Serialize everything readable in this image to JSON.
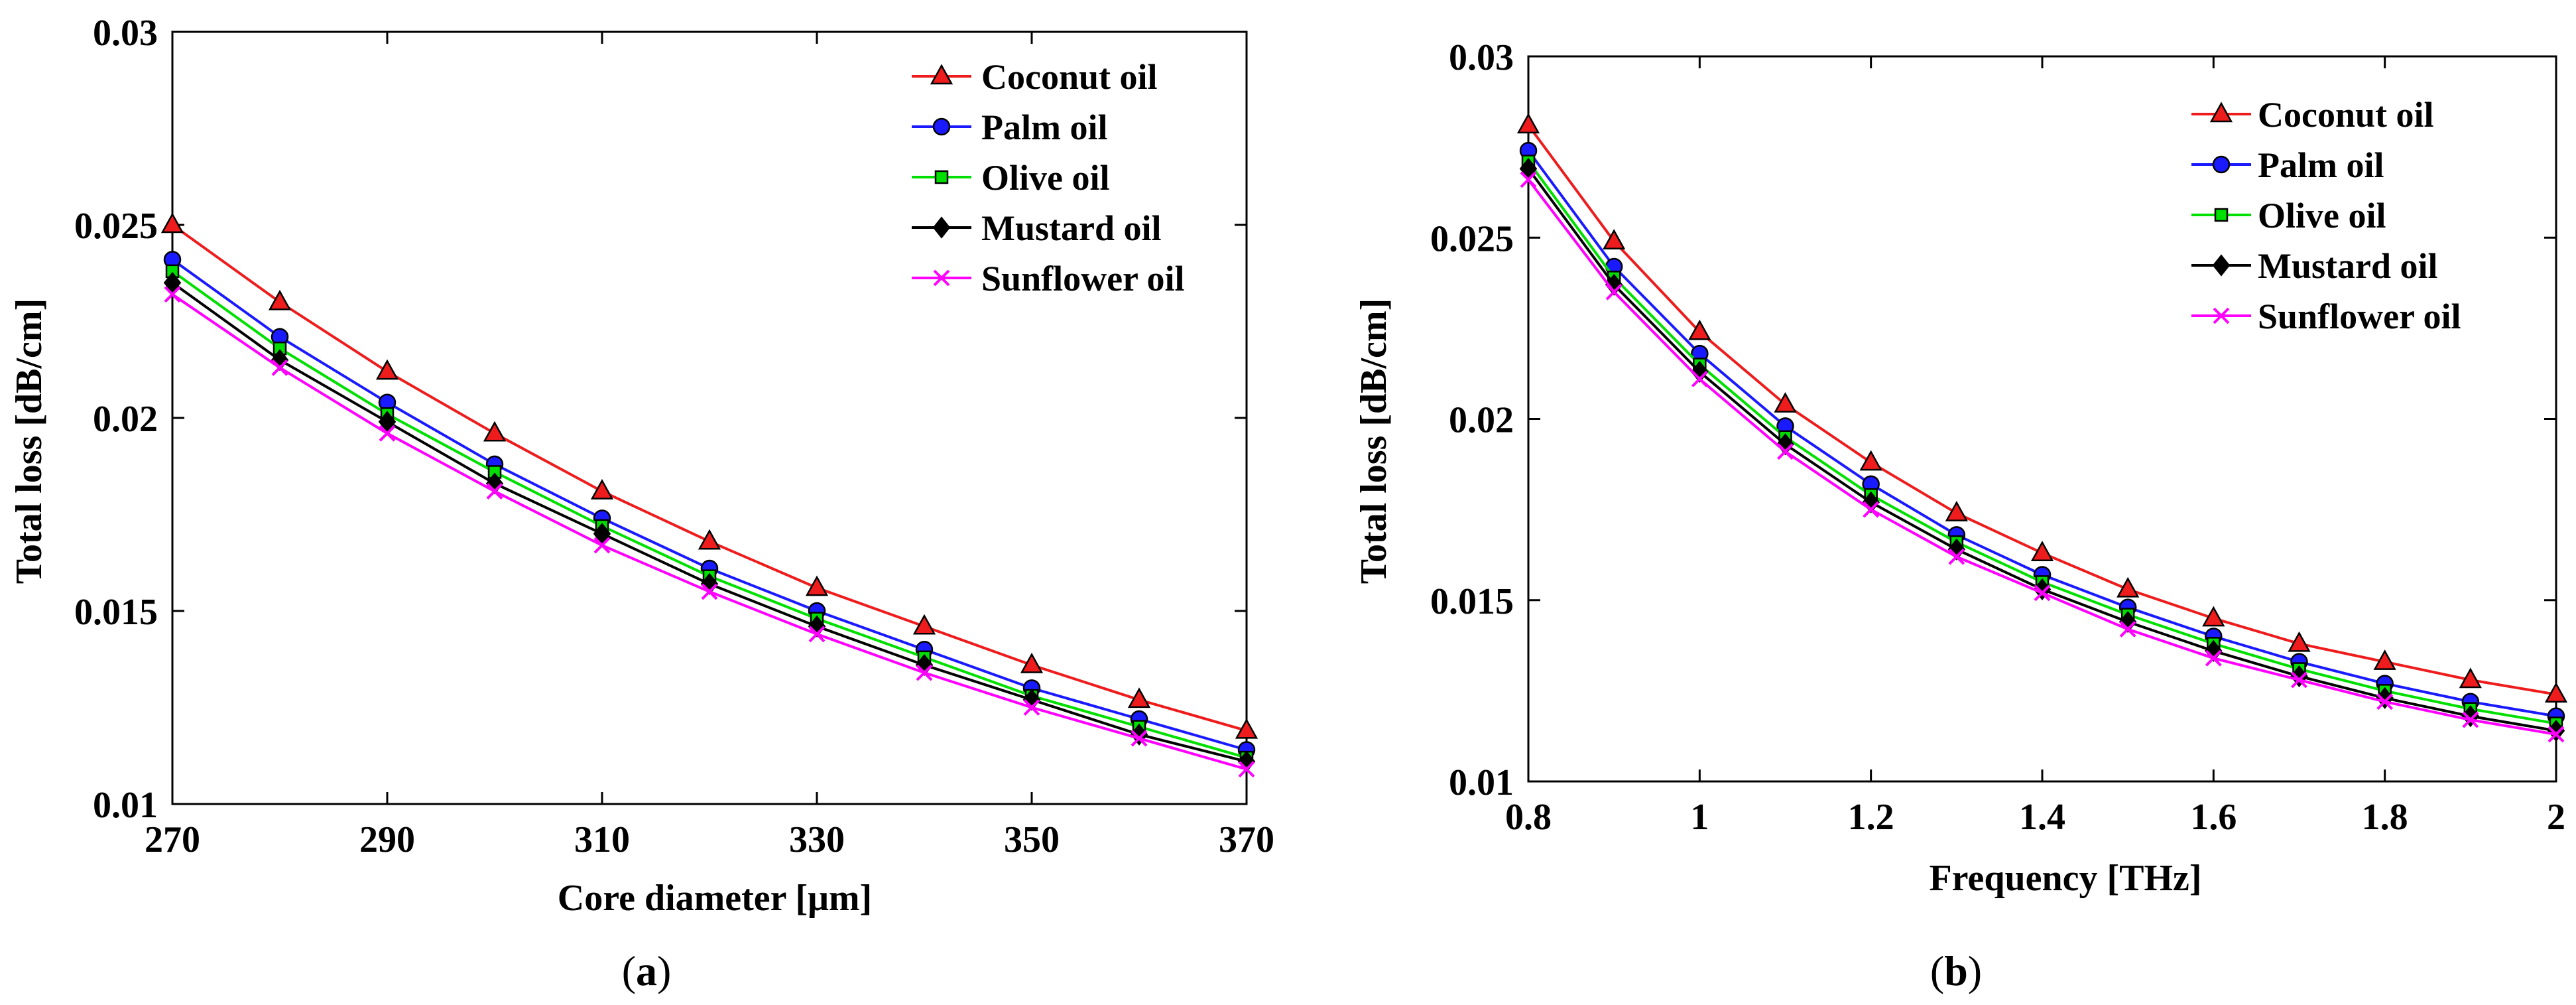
{
  "chart_data": [
    {
      "type": "line",
      "panel_label": "a",
      "xlabel": "Core diameter [μm]",
      "ylabel": "Total loss [dB/cm]",
      "xlim": [
        270,
        370
      ],
      "ylim": [
        0.01,
        0.03
      ],
      "xticks": [
        270,
        290,
        310,
        330,
        350,
        370
      ],
      "xtick_labels": [
        "270",
        "290",
        "310",
        "330",
        "350",
        "370"
      ],
      "yticks": [
        0.01,
        0.015,
        0.02,
        0.025,
        0.03
      ],
      "ytick_labels": [
        "0.01",
        "0.015",
        "0.02",
        "0.025",
        "0.03"
      ],
      "legend_position": "top-right",
      "x": [
        270,
        280,
        290,
        300,
        310,
        320,
        330,
        340,
        350,
        360,
        370
      ],
      "series": [
        {
          "name": "Coconut oil",
          "color": "#ee1c1c",
          "marker": "triangle",
          "values": [
            0.025,
            0.023,
            0.0212,
            0.0196,
            0.0181,
            0.0168,
            0.0156,
            0.0146,
            0.0136,
            0.0127,
            0.0119
          ]
        },
        {
          "name": "Palm oil",
          "color": "#1a1aff",
          "marker": "circle",
          "values": [
            0.0241,
            0.0221,
            0.0204,
            0.0188,
            0.0174,
            0.0161,
            0.015,
            0.014,
            0.013,
            0.0122,
            0.0114
          ]
        },
        {
          "name": "Olive oil",
          "color": "#00e000",
          "marker": "square",
          "values": [
            0.0238,
            0.0218,
            0.0201,
            0.0186,
            0.0172,
            0.0159,
            0.0148,
            0.0138,
            0.0128,
            0.012,
            0.0112
          ]
        },
        {
          "name": "Mustard oil",
          "color": "#000000",
          "marker": "diamond",
          "values": [
            0.0235,
            0.0215,
            0.0199,
            0.0183,
            0.017,
            0.0157,
            0.0146,
            0.0136,
            0.0127,
            0.0118,
            0.0111
          ]
        },
        {
          "name": "Sunflower oil",
          "color": "#ff00ff",
          "marker": "x",
          "values": [
            0.0232,
            0.0213,
            0.0196,
            0.0181,
            0.0167,
            0.0155,
            0.0144,
            0.0134,
            0.0125,
            0.0117,
            0.0109
          ]
        }
      ]
    },
    {
      "type": "line",
      "panel_label": "b",
      "xlabel": "Frequency [THz]",
      "ylabel": "Total loss [dB/cm]",
      "xlim": [
        0.8,
        2.0
      ],
      "ylim": [
        0.01,
        0.03
      ],
      "xticks": [
        0.8,
        1.0,
        1.2,
        1.4,
        1.6,
        1.8,
        2.0
      ],
      "xtick_labels": [
        "0.8",
        "1",
        "1.2",
        "1.4",
        "1.6",
        "1.8",
        "2"
      ],
      "yticks": [
        0.01,
        0.015,
        0.02,
        0.025,
        0.03
      ],
      "ytick_labels": [
        "0.01",
        "0.015",
        "0.02",
        "0.025",
        "0.03"
      ],
      "legend_position": "top-right",
      "x": [
        0.8,
        0.9,
        1.0,
        1.1,
        1.2,
        1.3,
        1.4,
        1.5,
        1.6,
        1.7,
        1.8,
        1.9,
        2.0
      ],
      "series": [
        {
          "name": "Coconut oil",
          "color": "#ee1c1c",
          "marker": "triangle",
          "values": [
            0.0281,
            0.0249,
            0.0224,
            0.0204,
            0.0188,
            0.0174,
            0.0163,
            0.0153,
            0.0145,
            0.0138,
            0.0133,
            0.0128,
            0.0124
          ]
        },
        {
          "name": "Palm oil",
          "color": "#1a1aff",
          "marker": "circle",
          "values": [
            0.0274,
            0.0242,
            0.0218,
            0.0198,
            0.0182,
            0.0168,
            0.0157,
            0.0148,
            0.014,
            0.0133,
            0.0127,
            0.0122,
            0.0118
          ]
        },
        {
          "name": "Olive oil",
          "color": "#00e000",
          "marker": "square",
          "values": [
            0.0271,
            0.0239,
            0.0215,
            0.0195,
            0.0179,
            0.0166,
            0.0155,
            0.0146,
            0.0138,
            0.0131,
            0.0125,
            0.012,
            0.0116
          ]
        },
        {
          "name": "Mustard oil",
          "color": "#000000",
          "marker": "diamond",
          "values": [
            0.0269,
            0.0237,
            0.0213,
            0.0193,
            0.0177,
            0.0164,
            0.0153,
            0.0144,
            0.0136,
            0.0129,
            0.0123,
            0.0118,
            0.0114
          ]
        },
        {
          "name": "Sunflower oil",
          "color": "#ff00ff",
          "marker": "x",
          "values": [
            0.0266,
            0.0235,
            0.0211,
            0.0191,
            0.0175,
            0.0162,
            0.0152,
            0.0142,
            0.0134,
            0.0128,
            0.0122,
            0.0117,
            0.0113
          ]
        }
      ]
    }
  ],
  "captions": [
    {
      "open": "(",
      "letter": "a",
      "close": ")"
    },
    {
      "open": "(",
      "letter": "b",
      "close": ")"
    }
  ]
}
